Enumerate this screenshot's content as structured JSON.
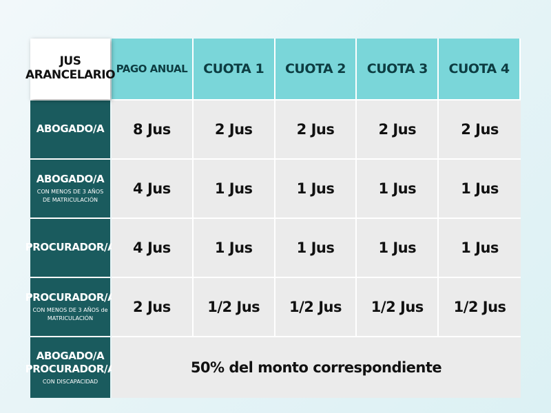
{
  "table": {
    "corner_line1": "JUS",
    "corner_line2": "ARANCELARIO",
    "columns": [
      "PAGO ANUAL",
      "CUOTA 1",
      "CUOTA 2",
      "CUOTA 3",
      "CUOTA 4"
    ],
    "rows": [
      {
        "title": "ABOGADO/A",
        "subtitle_1": "",
        "subtitle_2": "",
        "values": [
          "8 Jus",
          "2 Jus",
          "2 Jus",
          "2 Jus",
          "2 Jus"
        ]
      },
      {
        "title": "ABOGADO/A",
        "subtitle_1": "CON MENOS DE 3 AÑOS",
        "subtitle_2": "DE MATRICULACIÓN",
        "values": [
          "4 Jus",
          "1 Jus",
          "1 Jus",
          "1 Jus",
          "1 Jus"
        ]
      },
      {
        "title": "PROCURADOR/A",
        "subtitle_1": "",
        "subtitle_2": "",
        "values": [
          "4 Jus",
          "1 Jus",
          "1 Jus",
          "1 Jus",
          "1 Jus"
        ]
      },
      {
        "title": "PROCURADOR/A",
        "subtitle_1": "CON MENOS DE 3 AÑOS de",
        "subtitle_2": "MATRICULACIÓN",
        "values": [
          "2 Jus",
          "1/2 Jus",
          "1/2 Jus",
          "1/2 Jus",
          "1/2 Jus"
        ]
      }
    ],
    "last_row": {
      "title_1": "ABOGADO/A",
      "title_2": "PROCURADOR/A",
      "subtitle": "CON DISCAPACIDAD",
      "value": "50% del monto correspondiente"
    }
  },
  "colors": {
    "header_teal": "#7ad6d9",
    "row_head_dark_teal": "#1a5b5e",
    "cell_gray": "#ebebeb"
  }
}
